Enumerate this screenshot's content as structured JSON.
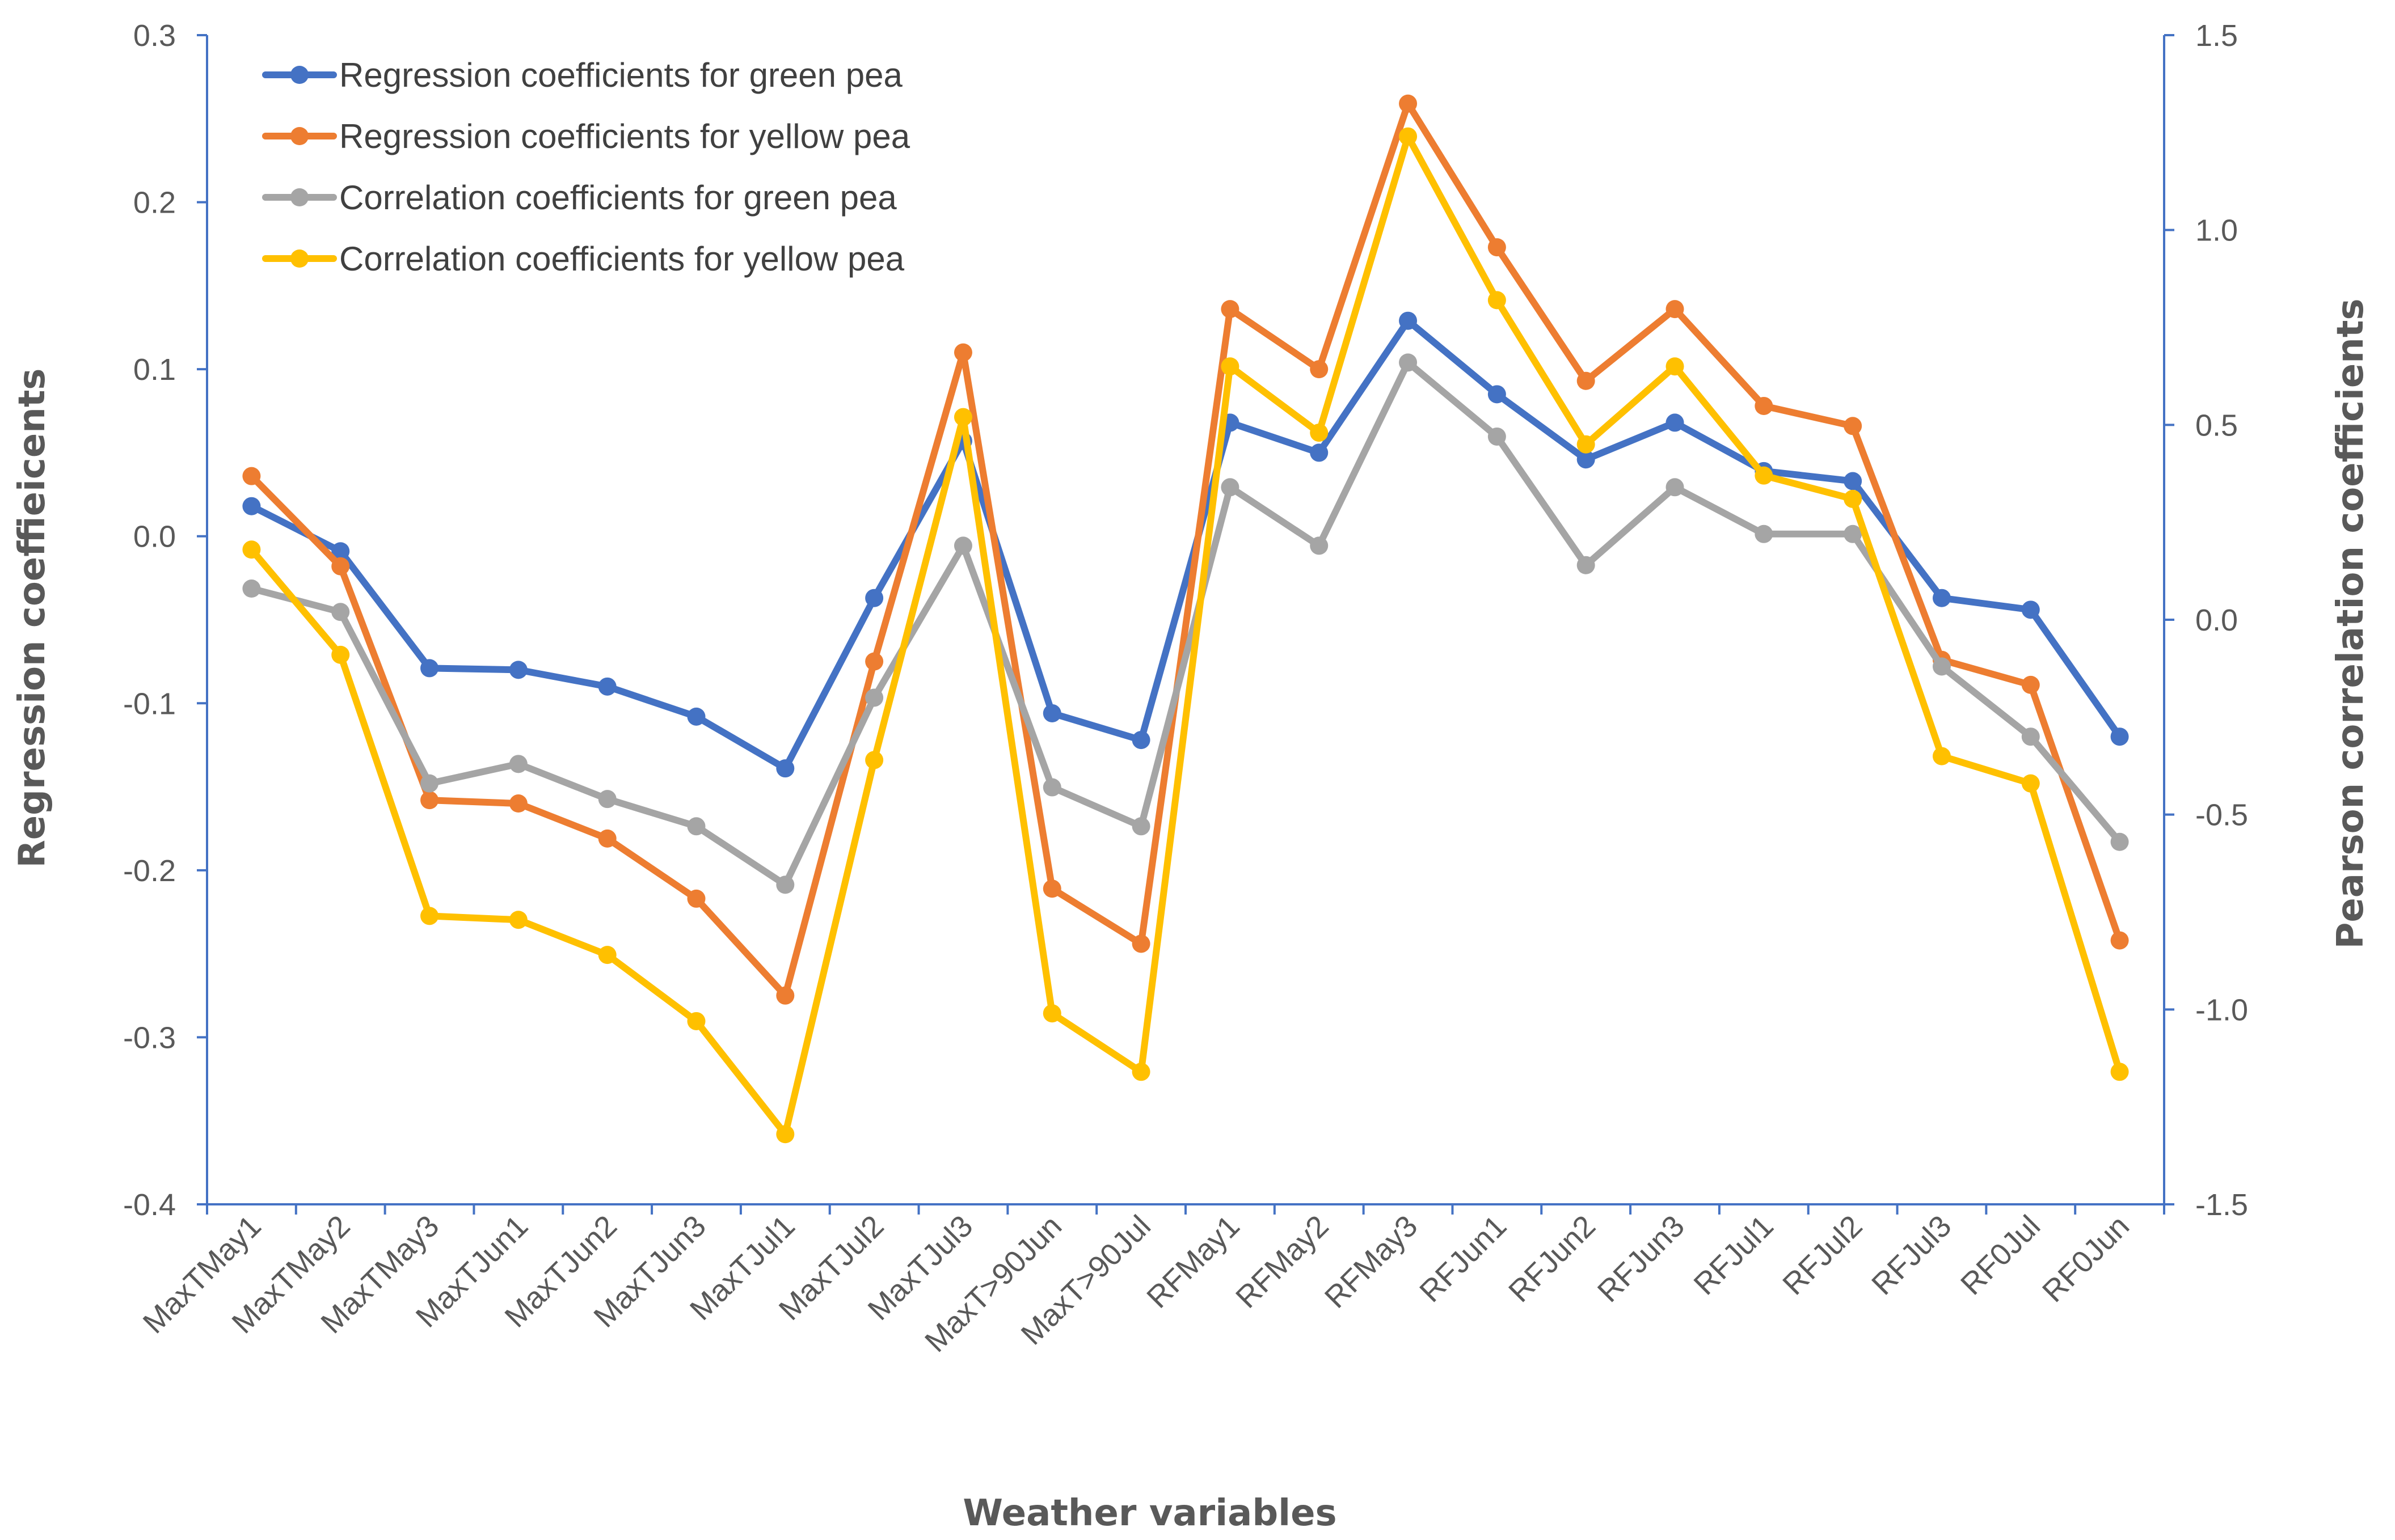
{
  "chart_data": {
    "type": "line",
    "title": "",
    "xlabel": "Weather variables",
    "ylabel": "Regression coeffieicents",
    "y2label": "Pearson correlation coefficients",
    "ylim": [
      -0.4,
      0.3
    ],
    "y2lim": [
      -1.5,
      1.5
    ],
    "yticks": [
      "0.3",
      "0.2",
      "0.1",
      "0.0",
      "-0.1",
      "-0.2",
      "-0.3",
      "-0.4"
    ],
    "y2ticks": [
      "1.5",
      "1.0",
      "0.5",
      "0.0",
      "-0.5",
      "-1.0",
      "-1.5"
    ],
    "legend_position": "top-left",
    "categories": [
      "MaxTMay1",
      "MaxTMay2",
      "MaxTMay3",
      "MaxTJun1",
      "MaxTJun2",
      "MaxTJun3",
      "MaxTJul1",
      "MaxTJul2",
      "MaxTJul3",
      "MaxT>90Jun",
      "MaxT>90Jul",
      "RFMay1",
      "RFMay2",
      "RFMay3",
      "RFJun1",
      "RFJun2",
      "RFJun3",
      "RFJul1",
      "RFJul2",
      "RFJul3",
      "RF0Jul",
      "RF0Jun"
    ],
    "series": [
      {
        "name": "Regression coefficients for green pea",
        "axis": "left",
        "color": "#4472C4",
        "values": [
          0.018,
          -0.009,
          -0.079,
          -0.08,
          -0.09,
          -0.108,
          -0.139,
          -0.037,
          0.057,
          -0.106,
          -0.122,
          0.068,
          0.05,
          0.129,
          0.085,
          0.046,
          0.068,
          0.039,
          0.033,
          -0.037,
          -0.044,
          -0.12
        ]
      },
      {
        "name": "Regression coefficients for yellow pea",
        "axis": "left",
        "color": "#ED7D31",
        "values": [
          0.036,
          -0.018,
          -0.158,
          -0.16,
          -0.181,
          -0.217,
          -0.275,
          -0.075,
          0.11,
          -0.211,
          -0.244,
          0.136,
          0.1,
          0.259,
          0.173,
          0.093,
          0.136,
          0.078,
          0.066,
          -0.074,
          -0.089,
          -0.242
        ]
      },
      {
        "name": "Correlation coefficients for green pea",
        "axis": "right",
        "color": "#A5A5A5",
        "values": [
          0.08,
          0.02,
          -0.42,
          -0.37,
          -0.46,
          -0.53,
          -0.68,
          -0.2,
          0.19,
          -0.43,
          -0.53,
          0.34,
          0.19,
          0.66,
          0.47,
          0.14,
          0.34,
          0.22,
          0.22,
          -0.12,
          -0.3,
          -0.57
        ]
      },
      {
        "name": "Correlation coefficients for yellow pea",
        "axis": "right",
        "color": "#FFC000",
        "values": [
          0.18,
          -0.09,
          -0.76,
          -0.77,
          -0.86,
          -1.03,
          -1.32,
          -0.36,
          0.52,
          -1.01,
          -1.16,
          0.65,
          0.48,
          1.24,
          0.82,
          0.45,
          0.65,
          0.37,
          0.31,
          -0.35,
          -0.42,
          -1.16
        ]
      }
    ]
  }
}
